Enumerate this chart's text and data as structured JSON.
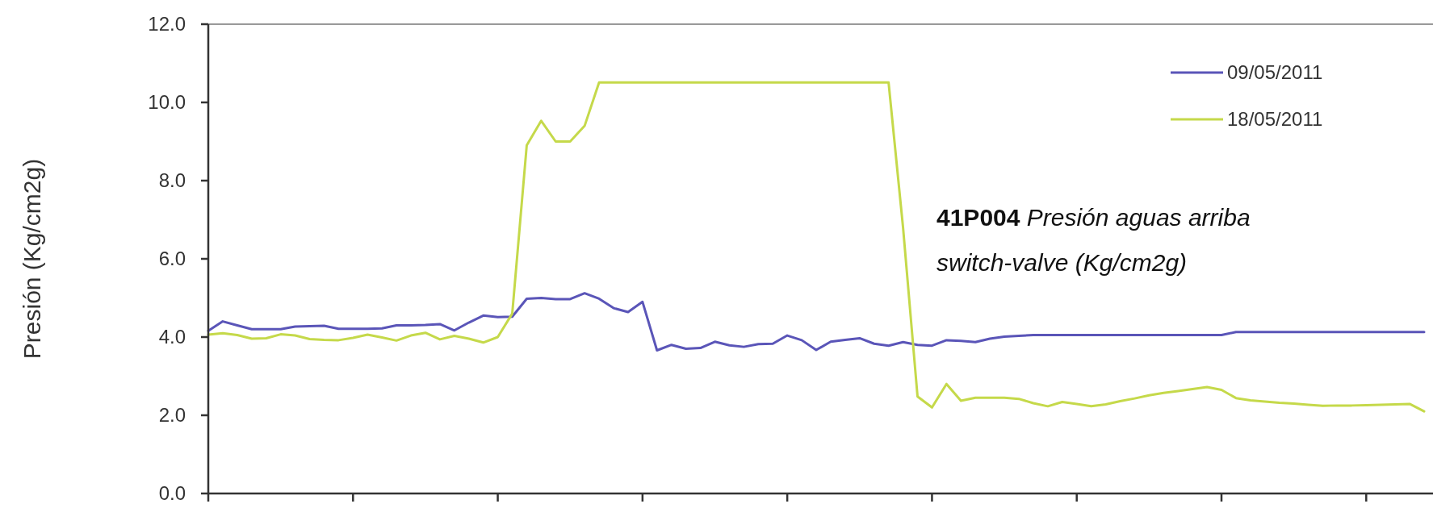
{
  "chart_data": {
    "type": "line",
    "ylabel": "Presión (Kg/cm2g)",
    "annotations": [
      "41P004 Presión aguas arriba switch-valve (Kg/cm2g)"
    ],
    "categories": [
      null,
      null,
      null,
      null,
      null,
      null,
      null,
      null,
      null,
      null,
      null,
      null,
      null,
      null,
      null,
      null,
      null,
      null,
      null,
      null,
      null,
      null,
      null,
      null,
      null,
      null,
      null,
      null,
      null,
      null,
      null,
      null,
      null,
      null,
      null,
      null,
      null,
      null,
      null,
      null,
      null,
      null,
      null,
      null,
      null,
      null,
      null,
      null,
      null,
      null,
      null,
      null,
      null,
      null,
      null,
      null,
      null,
      null,
      null,
      null,
      null,
      null,
      null,
      null,
      null,
      null,
      null,
      null,
      null,
      null,
      null,
      null,
      null,
      null,
      null,
      null,
      null,
      null,
      null,
      null,
      null,
      null,
      null,
      null,
      null
    ],
    "ylim": [
      0,
      12
    ],
    "yticks": [
      {
        "value": 0,
        "label": "0.0"
      },
      {
        "value": 2,
        "label": "2.0"
      },
      {
        "value": 4,
        "label": "4.0"
      },
      {
        "value": 6,
        "label": "6.0"
      },
      {
        "value": 8,
        "label": "8.0"
      },
      {
        "value": 10,
        "label": "10.0"
      },
      {
        "value": 12,
        "label": "12.0"
      }
    ],
    "legend": "top right",
    "line_style": "solid",
    "series": [
      {
        "name": "09/05/2011",
        "color": "#5a55b8",
        "values": [
          4.16,
          4.4,
          4.3,
          4.2,
          4.2,
          4.2,
          4.27,
          4.28,
          4.29,
          4.21,
          4.21,
          4.21,
          4.22,
          4.3,
          4.3,
          4.31,
          4.33,
          4.17,
          4.37,
          4.55,
          4.51,
          4.52,
          4.98,
          5.0,
          4.97,
          4.97,
          5.12,
          4.98,
          4.74,
          4.64,
          4.9,
          3.66,
          3.8,
          3.7,
          3.72,
          3.88,
          3.79,
          3.75,
          3.82,
          3.83,
          4.04,
          3.92,
          3.67,
          3.88,
          3.93,
          3.97,
          3.83,
          3.78,
          3.87,
          3.8,
          3.78,
          3.92,
          3.9,
          3.87,
          3.96,
          4.01,
          4.03,
          4.05,
          4.05,
          4.05,
          4.05,
          4.05,
          4.05,
          4.05,
          4.05,
          4.05,
          4.05,
          4.05,
          4.05,
          4.05,
          4.05,
          4.13,
          4.13,
          4.13,
          4.13,
          4.13,
          4.13,
          4.13,
          4.13,
          4.13,
          4.13,
          4.13,
          4.13,
          4.13,
          4.13
        ]
      },
      {
        "name": "18/05/2011",
        "color": "#c5d94a",
        "values": [
          4.06,
          4.1,
          4.05,
          3.96,
          3.97,
          4.07,
          4.04,
          3.95,
          3.93,
          3.92,
          3.98,
          4.06,
          3.99,
          3.91,
          4.04,
          4.11,
          3.94,
          4.03,
          3.96,
          3.86,
          4.0,
          4.6,
          8.9,
          9.53,
          9.0,
          9.0,
          9.4,
          10.51,
          10.51,
          10.51,
          10.51,
          10.51,
          10.51,
          10.51,
          10.51,
          10.51,
          10.51,
          10.51,
          10.51,
          10.51,
          10.51,
          10.51,
          10.51,
          10.51,
          10.51,
          10.51,
          10.51,
          10.51,
          6.8,
          2.48,
          2.2,
          2.8,
          2.37,
          2.45,
          2.45,
          2.45,
          2.42,
          2.31,
          2.23,
          2.34,
          2.29,
          2.23,
          2.28,
          2.36,
          2.43,
          2.51,
          2.57,
          2.62,
          2.67,
          2.72,
          2.65,
          2.44,
          2.38,
          2.35,
          2.32,
          2.3,
          2.27,
          2.24,
          2.25,
          2.25,
          2.26,
          2.27,
          2.28,
          2.29,
          2.1
        ]
      }
    ]
  }
}
